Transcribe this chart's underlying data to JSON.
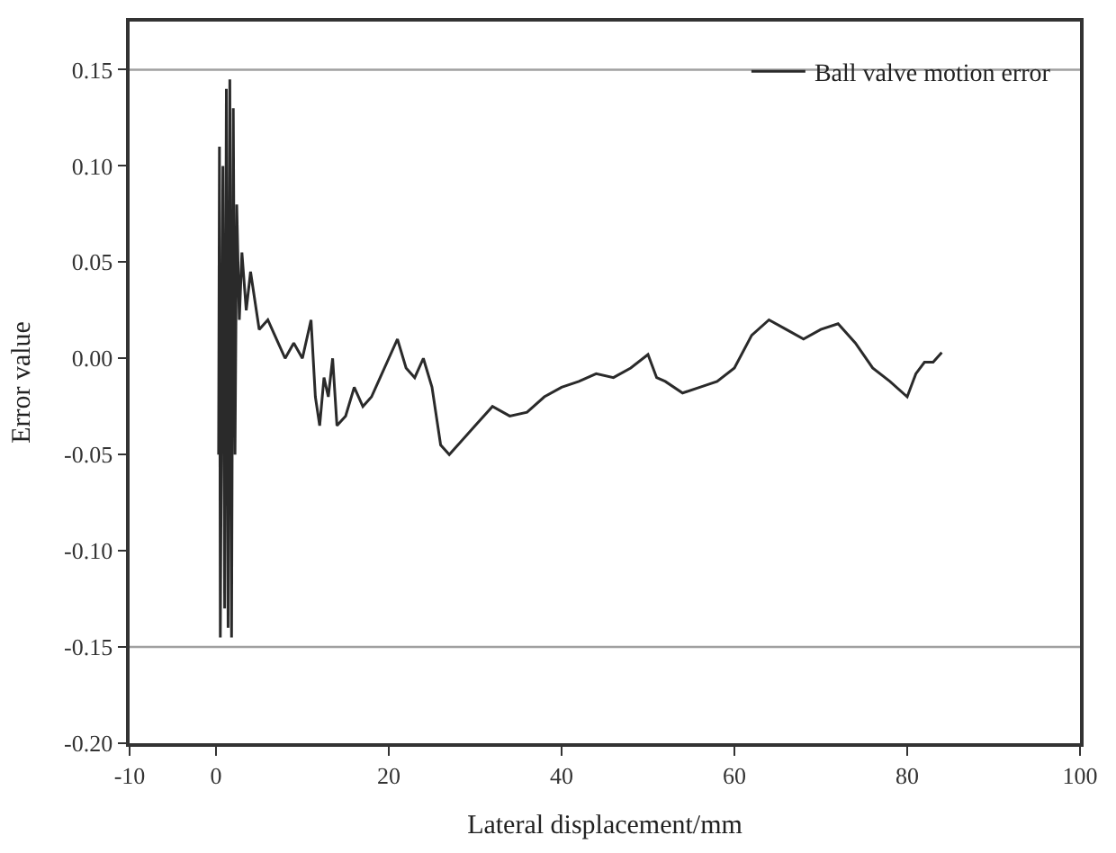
{
  "chart_data": {
    "type": "line",
    "xlabel": "Lateral displacement/mm",
    "ylabel": "Error value",
    "xlim": [
      -10,
      100
    ],
    "xticks": [
      -10,
      0,
      20,
      40,
      60,
      80,
      100
    ],
    "ylim": [
      -0.2,
      0.175
    ],
    "yticks": [
      {
        "value": -0.2,
        "label": "-0.20"
      },
      {
        "value": -0.15,
        "label": "-0.15"
      },
      {
        "value": -0.1,
        "label": "-0.10"
      },
      {
        "value": -0.05,
        "label": "-0.05"
      },
      {
        "value": 0,
        "label": "0.00"
      },
      {
        "value": 0.05,
        "label": "0.05"
      },
      {
        "value": 0.1,
        "label": "0.10"
      },
      {
        "value": 0.15,
        "label": "0.15"
      }
    ],
    "legend": "top right",
    "grid": false,
    "marker": "none",
    "line_style": "solid",
    "ref_lines": [
      {
        "axis": "y",
        "value": 0.15,
        "color": "#a0a0a0"
      },
      {
        "axis": "y",
        "value": -0.15,
        "color": "#a0a0a0"
      }
    ],
    "series": [
      {
        "name": "Ball valve motion error",
        "color": "#2a2a2a",
        "x": [
          0.3,
          0.4,
          0.5,
          0.8,
          1.0,
          1.2,
          1.4,
          1.6,
          1.8,
          2.0,
          2.2,
          2.4,
          2.7,
          3.0,
          3.5,
          4,
          5,
          6,
          7,
          8,
          9,
          10,
          11,
          11.5,
          12,
          12.5,
          13,
          13.5,
          14,
          15,
          16,
          17,
          18,
          19,
          20,
          21,
          22,
          23,
          24,
          25,
          26,
          27,
          28,
          30,
          32,
          34,
          36,
          38,
          40,
          42,
          44,
          46,
          48,
          50,
          51,
          52,
          54,
          56,
          58,
          60,
          62,
          64,
          66,
          68,
          70,
          72,
          74,
          76,
          78,
          80,
          81,
          82,
          83,
          84
        ],
        "values": [
          -0.05,
          0.11,
          -0.145,
          0.1,
          -0.13,
          0.14,
          -0.14,
          0.145,
          -0.145,
          0.13,
          -0.05,
          0.08,
          0.02,
          0.055,
          0.025,
          0.045,
          0.015,
          0.02,
          0.01,
          0.0,
          0.008,
          0.0,
          0.02,
          -0.02,
          -0.035,
          -0.01,
          -0.02,
          0.0,
          -0.035,
          -0.03,
          -0.015,
          -0.025,
          -0.02,
          -0.01,
          0.0,
          0.01,
          -0.005,
          -0.01,
          0.0,
          -0.015,
          -0.045,
          -0.05,
          -0.045,
          -0.035,
          -0.025,
          -0.03,
          -0.028,
          -0.02,
          -0.015,
          -0.012,
          -0.008,
          -0.01,
          -0.005,
          0.002,
          -0.01,
          -0.012,
          -0.018,
          -0.015,
          -0.012,
          -0.005,
          0.012,
          0.02,
          0.015,
          0.01,
          0.015,
          0.018,
          0.008,
          -0.005,
          -0.012,
          -0.02,
          -0.008,
          -0.002,
          -0.002,
          0.003
        ]
      }
    ]
  }
}
